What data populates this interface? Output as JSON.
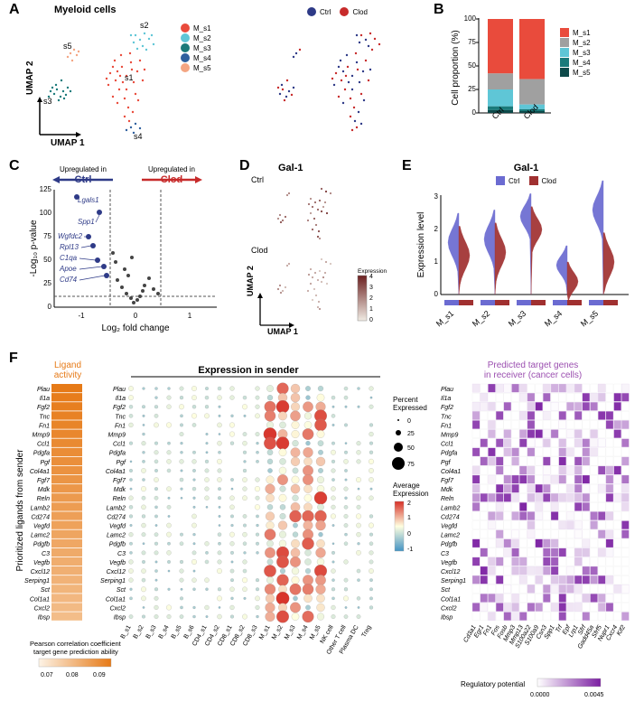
{
  "panelA": {
    "label": "A",
    "title": "Myeloid cells",
    "axis_x": "UMAP 1",
    "axis_y": "UMAP 2",
    "legend1": [
      {
        "label": "M_s1",
        "color": "#e94b3c"
      },
      {
        "label": "M_s2",
        "color": "#5fc6d6"
      },
      {
        "label": "M_s3",
        "color": "#1a7a7a"
      },
      {
        "label": "M_s4",
        "color": "#2e5f9e"
      },
      {
        "label": "M_s5",
        "color": "#f4a582"
      }
    ],
    "legend2": [
      {
        "label": "Ctrl",
        "color": "#2e3a87"
      },
      {
        "label": "Clod",
        "color": "#c72b2b"
      }
    ],
    "cluster_labels": [
      "s1",
      "s2",
      "s3",
      "s4",
      "s5"
    ],
    "scatter_colors": [
      "#e94b3c",
      "#5fc6d6",
      "#1a7a7a",
      "#2e5f9e",
      "#f4a582"
    ]
  },
  "panelB": {
    "label": "B",
    "ylabel": "Cell proportion (%)",
    "yticks": [
      0,
      25,
      50,
      75,
      100
    ],
    "xcats": [
      "Ctrl",
      "Clod"
    ],
    "series": [
      "M_s1",
      "M_s2",
      "M_s3",
      "M_s4",
      "M_s5"
    ],
    "colors": [
      "#e94b3c",
      "#a0a0a0",
      "#5fc6d6",
      "#1a7a7a",
      "#0d4a4a"
    ],
    "ctrl": [
      58,
      17,
      18,
      4,
      3
    ],
    "clod": [
      64,
      27,
      5,
      2,
      2
    ]
  },
  "panelC": {
    "label": "C",
    "left_lbl": "Upregulated in",
    "left_name": "Ctrl",
    "right_lbl": "Upregulated in",
    "right_name": "Clod",
    "xlabel": "Log₂ fold change",
    "ylabel": "-Log₁₀ p-value",
    "xlim": [
      -1.5,
      1.5
    ],
    "xticks": [
      -1,
      0,
      1
    ],
    "yticks": [
      0,
      25,
      50,
      75,
      100,
      125
    ],
    "sig_color": "#2e3a87",
    "genes": [
      "Lgals1",
      "Spp1",
      "Wgfdc2",
      "Rpl13",
      "C1qa",
      "Apoe",
      "Cd74"
    ]
  },
  "panelD": {
    "label": "D",
    "title": "Gal-1",
    "conditions": [
      "Ctrl",
      "Clod"
    ],
    "axis_x": "UMAP 1",
    "axis_y": "UMAP 2",
    "scale_lbl": "Expression",
    "scale_vals": [
      4,
      3,
      2,
      1,
      0
    ],
    "color_low": "#f0ebe3",
    "color_high": "#6b2020"
  },
  "panelE": {
    "label": "E",
    "title": "Gal-1",
    "ylabel": "Expression level",
    "yticks": [
      0,
      1,
      2,
      3
    ],
    "xcats": [
      "M_s1",
      "M_s2",
      "M_s3",
      "M_s4",
      "M_s5"
    ],
    "legend": [
      {
        "label": "Ctrl",
        "color": "#6b6bd1"
      },
      {
        "label": "Clod",
        "color": "#a03030"
      }
    ]
  },
  "panelF": {
    "label": "F",
    "ligand_title": "Ligand\nactivity",
    "ligand_ylab": "Prioritized ligands from sender",
    "ligand_scale_lbl": "Pearson correlation coefficient\ntarget gene prediction ability",
    "ligand_scale_ticks": [
      0.07,
      0.08,
      0.09
    ],
    "ligand_color_low": "#fdf3e6",
    "ligand_color_high": "#e67a17",
    "ligands": [
      "Plau",
      "Il1a",
      "Fgf2",
      "Tnc",
      "Fn1",
      "Mmp9",
      "Ccl1",
      "Pdgfa",
      "Pgf",
      "Col4a1",
      "Fgf7",
      "Mdk",
      "Reln",
      "Lamb2",
      "Cd274",
      "Vegfd",
      "Lamc2",
      "Pdgfb",
      "C3",
      "Vegfb",
      "Cxcl12",
      "Serping1",
      "Sct",
      "Col1a1",
      "Cxcl2",
      "Ibsp"
    ],
    "dot_title": "Expression in sender",
    "dot_size_lbl": "Percent\nExpressed",
    "dot_sizes": [
      0,
      25,
      50,
      75
    ],
    "dot_color_lbl": "Average\nExpression",
    "dot_color_ticks": [
      2,
      1,
      0,
      -1
    ],
    "dot_color_high": "#d73027",
    "dot_color_mid": "#ffffe0",
    "dot_color_low": "#4393c3",
    "senders": [
      "B_s1",
      "B_s2",
      "B_s3",
      "B_s4",
      "B_s5",
      "B_s6",
      "CD4_s1",
      "CD4_s2",
      "CD8_s1",
      "CD8_s2",
      "CD8_s3",
      "M_s1",
      "M_s2",
      "M_s3",
      "M_s4",
      "M_s5",
      "NK cell",
      "Other T cell",
      "Plasma DC",
      "Treg"
    ],
    "heatmap_title": "Predicted target genes\nin receiver (cancer cells)",
    "heatmap_scale_lbl": "Regulatory potential",
    "heatmap_scale_ticks": [
      0.0,
      0.0045
    ],
    "heatmap_color_low": "#ffffff",
    "heatmap_color_high": "#7b1fa2",
    "targets": [
      "Cd3a1",
      "Egr1",
      "Fn1",
      "Fos",
      "Fosb",
      "Mmp3",
      "Mmp13",
      "S100a22",
      "S100a9",
      "Csn3",
      "Spp1",
      "Trf",
      "Epf",
      "Lrp1",
      "Sfrf",
      "Gadd45a",
      "Sfrf5",
      "Nupr1",
      "Cxcr4",
      "Kif2"
    ]
  }
}
